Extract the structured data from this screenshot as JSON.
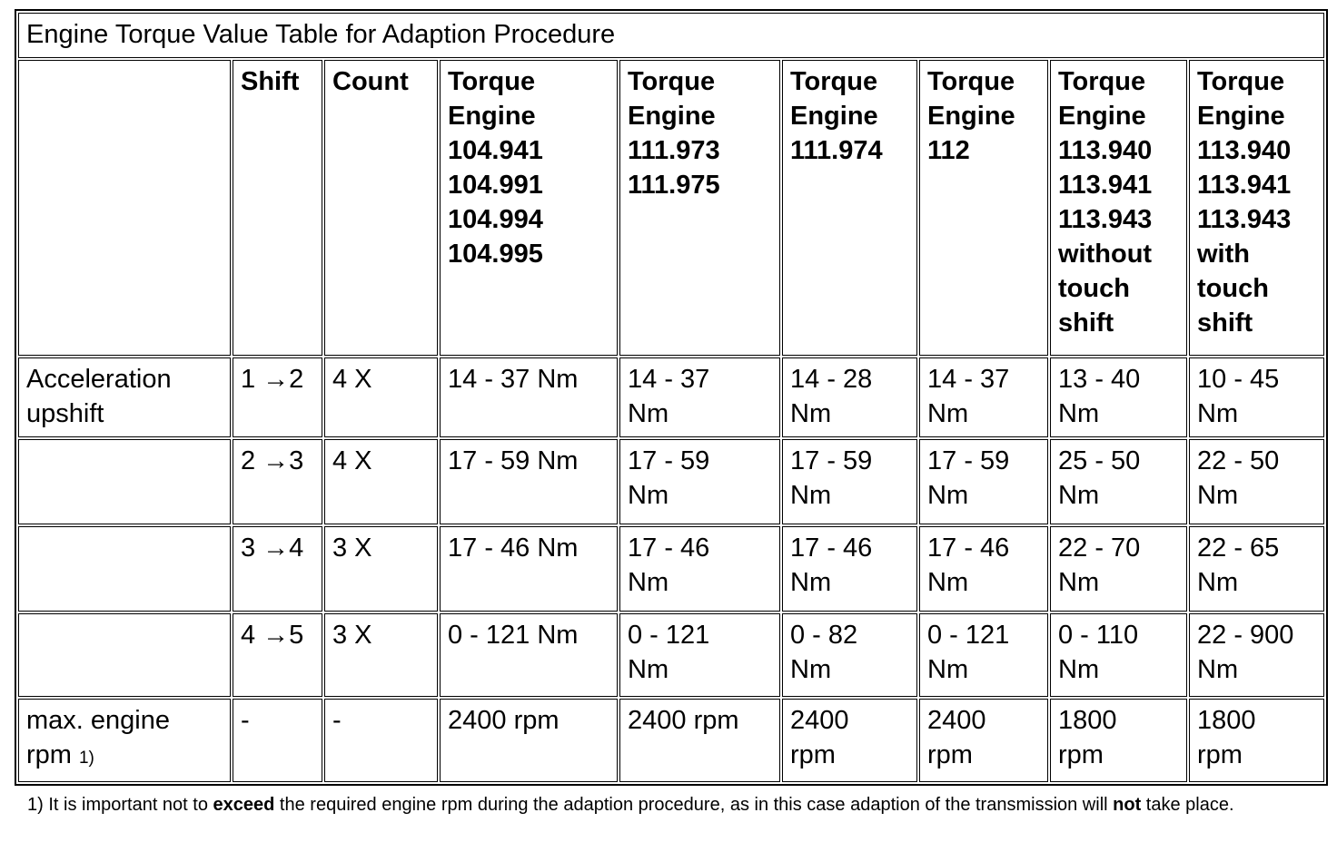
{
  "title": "Engine Torque Value Table for Adaption Procedure",
  "table": {
    "columns": [
      {
        "label": ""
      },
      {
        "label": "Shift"
      },
      {
        "label": "Count"
      },
      {
        "label": "Torque\nEngine\n104.941\n104.991\n104.994\n104.995"
      },
      {
        "label": "Torque\nEngine\n111.973\n111.975"
      },
      {
        "label": "Torque\nEngine\n111.974"
      },
      {
        "label": "Torque\nEngine\n112"
      },
      {
        "label": "Torque\nEngine\n113.940\n113.941\n113.943\nwithout\ntouch\nshift"
      },
      {
        "label": "Torque\nEngine\n113.940\n113.941\n113.943\nwith\ntouch\nshift"
      }
    ],
    "rows": [
      {
        "label": "Acceleration\nupshift",
        "cells": [
          "1 →2",
          "4 X",
          "14 - 37 Nm",
          "14 - 37\nNm",
          "14 - 28\nNm",
          "14 - 37\nNm",
          "13 - 40\nNm",
          "10 - 45\nNm"
        ]
      },
      {
        "label": "",
        "cells": [
          "2 →3",
          "4 X",
          "17 - 59 Nm",
          "17 - 59\nNm",
          "17 - 59\nNm",
          "17 - 59\nNm",
          "25 - 50\nNm",
          "22 - 50\nNm"
        ]
      },
      {
        "label": "",
        "cells": [
          "3 →4",
          "3 X",
          "17 - 46 Nm",
          "17 - 46\nNm",
          "17 - 46\nNm",
          "17 - 46\nNm",
          "22 - 70\nNm",
          "22 - 65\nNm"
        ]
      },
      {
        "label": "",
        "cells": [
          "4 →5",
          "3 X",
          "0 - 121 Nm",
          "0 - 121\nNm",
          "0 - 82\nNm",
          "0 - 121\nNm",
          "0 - 110\nNm",
          "22 - 900\nNm"
        ]
      },
      {
        "label": "max. engine\nrpm",
        "label_marker": "1)",
        "cells": [
          "-",
          "-",
          "2400 rpm",
          "2400 rpm",
          "2400\nrpm",
          "2400\nrpm",
          "1800\nrpm",
          "1800\nrpm"
        ]
      }
    ]
  },
  "footnote": {
    "parts": [
      {
        "text": "1) It is important not to ",
        "bold": false
      },
      {
        "text": "exceed",
        "bold": true
      },
      {
        "text": " the required engine rpm during the adaption procedure, as in this case adaption of the transmission will ",
        "bold": false
      },
      {
        "text": "not",
        "bold": true
      },
      {
        "text": " take place.",
        "bold": false
      }
    ]
  }
}
